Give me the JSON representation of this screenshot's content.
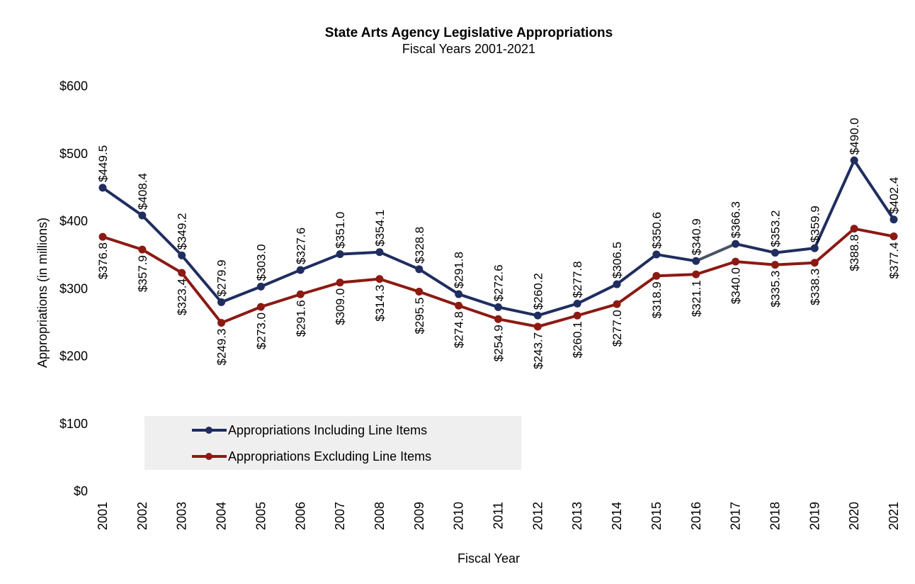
{
  "chart_data": {
    "type": "line",
    "title": "State Arts Agency Legislative Appropriations",
    "subtitle": "Fiscal Years 2001-2021",
    "xlabel": "Fiscal Year",
    "ylabel": "Appropriations (in millions)",
    "ylim": [
      0,
      600
    ],
    "yticks": [
      "$0",
      "$100",
      "$200",
      "$300",
      "$400",
      "$500",
      "$600"
    ],
    "grid": false,
    "legend_position": "bottom-left inside plot",
    "categories": [
      "2001",
      "2002",
      "2003",
      "2004",
      "2005",
      "2006",
      "2007",
      "2008",
      "2009",
      "2010",
      "2011",
      "2012",
      "2013",
      "2014",
      "2015",
      "2016",
      "2017",
      "2018",
      "2019",
      "2020",
      "2021"
    ],
    "series": [
      {
        "name": "Appropriations Including Line Items",
        "color": "#1f2d5f",
        "values": [
          449.5,
          408.4,
          349.2,
          279.9,
          303.0,
          327.6,
          351.0,
          354.1,
          328.8,
          291.8,
          272.6,
          260.2,
          277.8,
          306.5,
          350.6,
          340.9,
          366.3,
          353.2,
          359.9,
          490.0,
          402.4
        ],
        "labels": [
          "$449.5",
          "$408.4",
          "$349.2",
          "$279.9",
          "$303.0",
          "$327.6",
          "$351.0",
          "$354.1",
          "$328.8",
          "$291.8",
          "$272.6",
          "$260.2",
          "$277.8",
          "$306.5",
          "$350.6",
          "$340.9",
          "$366.3",
          "$353.2",
          "$359.9",
          "$490.0",
          "$402.4"
        ]
      },
      {
        "name": "Appropriations Excluding Line Items",
        "color": "#8b1a13",
        "values": [
          376.8,
          357.9,
          323.4,
          249.3,
          273.0,
          291.6,
          309.0,
          314.3,
          295.5,
          274.8,
          254.9,
          243.7,
          260.1,
          277.0,
          318.9,
          321.1,
          340.0,
          335.3,
          338.3,
          388.8,
          377.4
        ],
        "labels": [
          "$376.8",
          "$357.9",
          "$323.4",
          "$249.3",
          "$273.0",
          "$291.6",
          "$309.0",
          "$314.3",
          "$295.5",
          "$274.8",
          "$254.9",
          "$243.7",
          "$260.1",
          "$277.0",
          "$318.9",
          "$321.1",
          "$340.0",
          "$335.3",
          "$338.3",
          "$388.8",
          "$377.4"
        ]
      }
    ],
    "highlight_segment_color": "#4a5366",
    "legend_background": "#efefef"
  }
}
